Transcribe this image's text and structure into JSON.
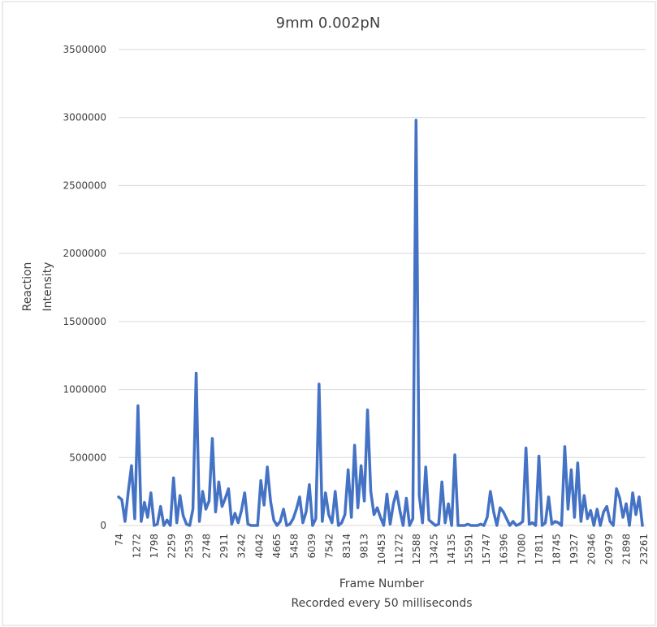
{
  "chart_data": {
    "type": "line",
    "title": "9mm 0.002pN",
    "xlabel": "Frame Number",
    "xlabel_sub": "Recorded every 50 milliseconds",
    "ylabel_lines": [
      "Reaction",
      "Intensity"
    ],
    "ylim": [
      0,
      3500000
    ],
    "yticks": [
      "0",
      "500000",
      "1000000",
      "1500000",
      "2000000",
      "2500000",
      "3000000",
      "3500000"
    ],
    "grid": true,
    "legend": "none",
    "x_tick_labels": [
      "74",
      "1272",
      "1798",
      "2259",
      "2539",
      "2748",
      "2911",
      "3242",
      "4042",
      "4665",
      "5458",
      "6039",
      "7542",
      "8314",
      "9813",
      "10453",
      "11272",
      "12588",
      "13425",
      "14135",
      "15591",
      "15747",
      "16396",
      "17080",
      "17811",
      "18745",
      "19327",
      "20346",
      "20979",
      "21898",
      "23261"
    ],
    "series": [
      {
        "color": "#4472c4",
        "values": [
          210000,
          190000,
          30000,
          250000,
          440000,
          50000,
          880000,
          30000,
          170000,
          60000,
          240000,
          0,
          10000,
          140000,
          0,
          40000,
          0,
          350000,
          20000,
          220000,
          70000,
          10000,
          0,
          120000,
          1120000,
          30000,
          250000,
          120000,
          180000,
          640000,
          100000,
          320000,
          140000,
          200000,
          270000,
          10000,
          90000,
          20000,
          110000,
          240000,
          10000,
          0,
          0,
          0,
          330000,
          150000,
          430000,
          180000,
          40000,
          0,
          30000,
          120000,
          0,
          10000,
          50000,
          120000,
          210000,
          20000,
          100000,
          300000,
          0,
          50000,
          1040000,
          30000,
          240000,
          80000,
          20000,
          250000,
          0,
          20000,
          80000,
          410000,
          60000,
          590000,
          130000,
          440000,
          180000,
          850000,
          250000,
          80000,
          130000,
          60000,
          0,
          230000,
          10000,
          160000,
          250000,
          110000,
          0,
          200000,
          0,
          50000,
          2980000,
          220000,
          20000,
          430000,
          40000,
          20000,
          0,
          10000,
          320000,
          20000,
          160000,
          0,
          520000,
          0,
          0,
          0,
          10000,
          0,
          0,
          0,
          10000,
          0,
          60000,
          250000,
          100000,
          0,
          130000,
          100000,
          50000,
          0,
          30000,
          0,
          10000,
          30000,
          570000,
          10000,
          20000,
          0,
          510000,
          0,
          20000,
          210000,
          10000,
          30000,
          20000,
          0,
          580000,
          120000,
          410000,
          60000,
          460000,
          30000,
          220000,
          50000,
          110000,
          0,
          120000,
          0,
          100000,
          140000,
          30000,
          0,
          270000,
          200000,
          60000,
          160000,
          0,
          240000,
          80000,
          210000,
          0
        ]
      }
    ]
  }
}
